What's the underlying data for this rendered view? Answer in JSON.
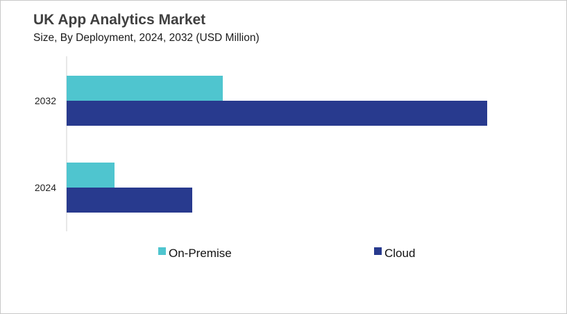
{
  "chart_data": {
    "type": "bar",
    "orientation": "horizontal",
    "title": "UK App Analytics Market",
    "subtitle": "Size, By Deployment, 2024, 2032 (USD Million)",
    "categories": [
      "2032",
      "2024"
    ],
    "series": [
      {
        "name": "On-Premise",
        "color": "#4FC5CF",
        "values": [
          225,
          69
        ]
      },
      {
        "name": "Cloud",
        "color": "#283A8E",
        "values": [
          606,
          181
        ]
      }
    ],
    "value_note": "relative estimated units (no value axis shown)",
    "xlim": [
      0,
      720
    ],
    "grid": false,
    "legend": "bottom"
  }
}
